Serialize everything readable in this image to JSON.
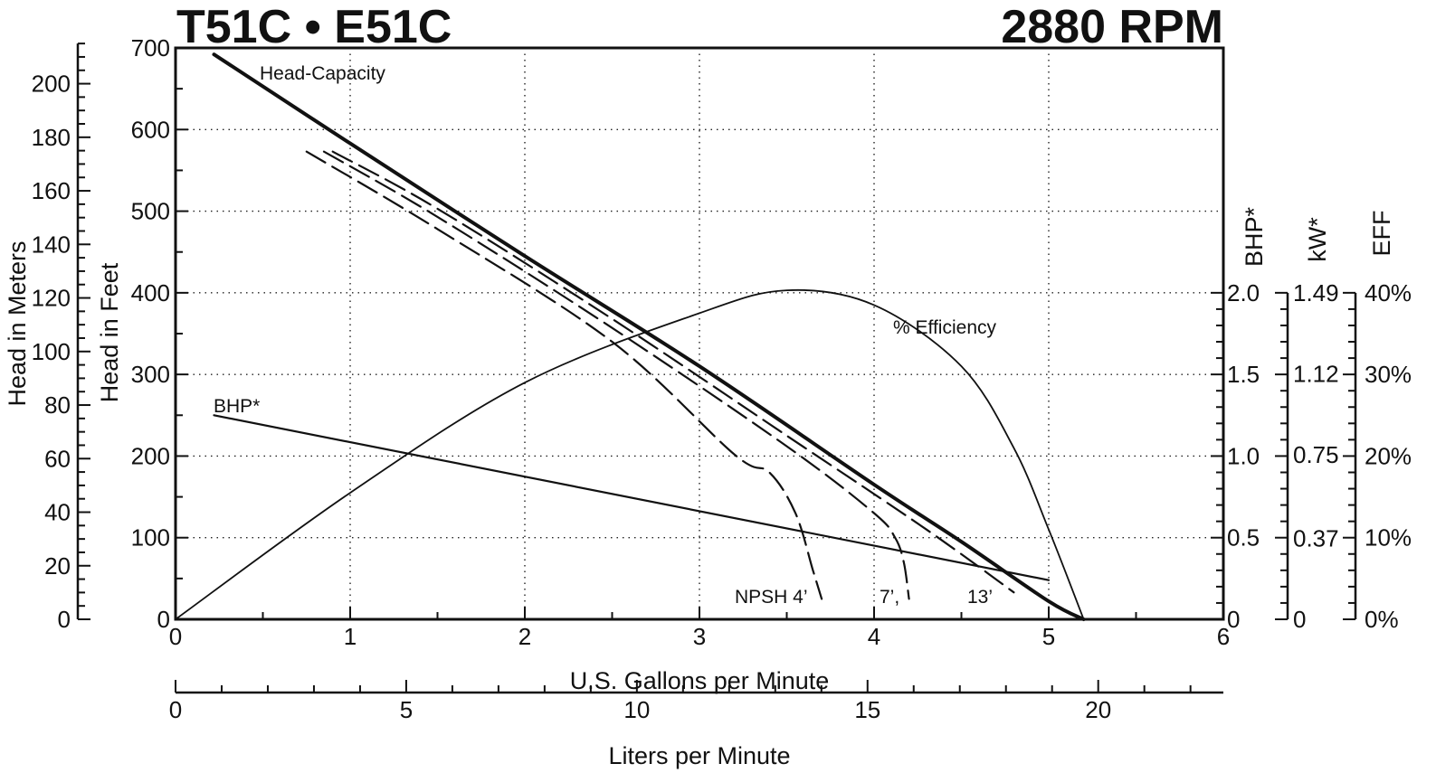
{
  "chart_data": {
    "type": "line",
    "title": "T51C • E51C",
    "subtitle": "2880 RPM",
    "xlabel": "U.S. Gallons per Minute",
    "xlabel_secondary": "Liters per Minute",
    "ylabel_feet": "Head in Feet",
    "ylabel_meters": "Head in Meters",
    "ylabel_bhp": "BHP*",
    "ylabel_kw": "kW*",
    "ylabel_eff": "EFF",
    "xlim": [
      0,
      6
    ],
    "ylim": [
      0,
      700
    ],
    "grid": true,
    "x_ticks": [
      "0",
      "1",
      "2",
      "3",
      "4",
      "5",
      "6"
    ],
    "y_ticks_feet": [
      "0",
      "100",
      "200",
      "300",
      "400",
      "500",
      "600",
      "700"
    ],
    "y_ticks_meters": [
      "0",
      "20",
      "40",
      "60",
      "80",
      "100",
      "120",
      "140",
      "160",
      "180",
      "200"
    ],
    "lpm_ticks": [
      "0",
      "5",
      "10",
      "15",
      "20"
    ],
    "bhp_ticks": [
      "0",
      "0.5",
      "1.0",
      "1.5",
      "2.0"
    ],
    "kw_ticks": [
      "0",
      "0.37",
      "0.75",
      "1.12",
      "1.49"
    ],
    "eff_ticks": [
      "0%",
      "10%",
      "20%",
      "30%",
      "40%"
    ],
    "series": [
      {
        "name": "Head-Capacity",
        "unit": "ft",
        "x": [
          0.22,
          1,
          2,
          3,
          4,
          4.5,
          5,
          5.2
        ],
        "y": [
          692,
          583,
          445,
          310,
          165,
          95,
          22,
          0
        ]
      },
      {
        "name": "NPSH 4’",
        "unit": "ft",
        "x": [
          0.75,
          1.5,
          2.5,
          3.2,
          3.4,
          3.55,
          3.65,
          3.7
        ],
        "y": [
          573,
          478,
          340,
          202,
          180,
          130,
          60,
          25
        ]
      },
      {
        "name": "7’,",
        "unit": "ft",
        "x": [
          0.85,
          1.5,
          2.5,
          3.5,
          4.0,
          4.12,
          4.17,
          4.2
        ],
        "y": [
          573,
          493,
          357,
          212,
          130,
          100,
          70,
          25
        ]
      },
      {
        "name": "13’",
        "unit": "ft",
        "x": [
          0.9,
          1.5,
          2.5,
          3.5,
          4.3,
          4.8
        ],
        "y": [
          573,
          503,
          368,
          225,
          110,
          33
        ]
      },
      {
        "name": "BHP*",
        "unit": "hp",
        "x": [
          0.22,
          5.0
        ],
        "y": [
          1.25,
          0.24
        ]
      },
      {
        "name": "% Efficiency",
        "unit": "%",
        "x": [
          0,
          1,
          2,
          3,
          3.5,
          4,
          4.5,
          4.8,
          5.0,
          5.2
        ],
        "y": [
          0,
          15.5,
          29,
          37.5,
          40.3,
          38.5,
          31,
          21,
          11,
          0
        ]
      }
    ],
    "annotations": {
      "head_capacity": "Head-Capacity",
      "efficiency": "% Efficiency",
      "bhp": "BHP*",
      "npsh4": "NPSH 4’",
      "npsh7": "7’,",
      "npsh13": "13’"
    }
  }
}
